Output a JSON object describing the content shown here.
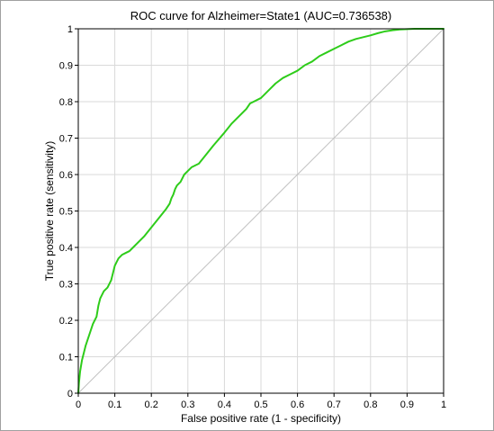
{
  "chart_data": {
    "type": "line",
    "title": "ROC curve for Alzheimer=State1 (AUC=0.736538)",
    "xlabel": "False positive rate (1 - specificity)",
    "ylabel": "True positive rate (sensitivity)",
    "xlim": [
      0,
      1
    ],
    "ylim": [
      0,
      1
    ],
    "x_ticks": [
      "0",
      "0.1",
      "0.2",
      "0.3",
      "0.4",
      "0.5",
      "0.6",
      "0.7",
      "0.8",
      "0.9",
      "1"
    ],
    "y_ticks": [
      "0",
      "0.1",
      "0.2",
      "0.3",
      "0.4",
      "0.5",
      "0.6",
      "0.7",
      "0.8",
      "0.9",
      "1"
    ],
    "grid": true,
    "legend": "none",
    "series": [
      {
        "color": "#2ecc1a",
        "x": [
          0,
          0.002,
          0.005,
          0.01,
          0.015,
          0.02,
          0.03,
          0.04,
          0.05,
          0.055,
          0.06,
          0.07,
          0.08,
          0.09,
          0.095,
          0.1,
          0.105,
          0.11,
          0.12,
          0.13,
          0.14,
          0.15,
          0.16,
          0.18,
          0.2,
          0.22,
          0.24,
          0.25,
          0.255,
          0.26,
          0.265,
          0.27,
          0.28,
          0.29,
          0.3,
          0.31,
          0.32,
          0.33,
          0.35,
          0.37,
          0.4,
          0.42,
          0.44,
          0.46,
          0.47,
          0.48,
          0.5,
          0.52,
          0.54,
          0.56,
          0.58,
          0.6,
          0.62,
          0.64,
          0.66,
          0.68,
          0.7,
          0.72,
          0.74,
          0.76,
          0.78,
          0.8,
          0.82,
          0.84,
          0.86,
          0.88,
          0.9,
          0.92,
          0.95,
          0.98,
          1.0
        ],
        "y": [
          0,
          0.03,
          0.06,
          0.09,
          0.11,
          0.13,
          0.16,
          0.19,
          0.21,
          0.24,
          0.26,
          0.28,
          0.29,
          0.31,
          0.33,
          0.35,
          0.36,
          0.37,
          0.38,
          0.385,
          0.39,
          0.4,
          0.41,
          0.43,
          0.455,
          0.48,
          0.505,
          0.52,
          0.535,
          0.545,
          0.56,
          0.57,
          0.58,
          0.6,
          0.61,
          0.62,
          0.625,
          0.63,
          0.655,
          0.68,
          0.715,
          0.74,
          0.76,
          0.78,
          0.795,
          0.8,
          0.81,
          0.83,
          0.85,
          0.865,
          0.875,
          0.885,
          0.9,
          0.91,
          0.925,
          0.935,
          0.945,
          0.955,
          0.965,
          0.972,
          0.977,
          0.982,
          0.988,
          0.993,
          0.996,
          0.998,
          0.999,
          1.0,
          1.0,
          1.0,
          1.0
        ]
      },
      {
        "color": "#c0c0c0",
        "x": [
          0,
          1
        ],
        "y": [
          0,
          1
        ]
      }
    ]
  }
}
